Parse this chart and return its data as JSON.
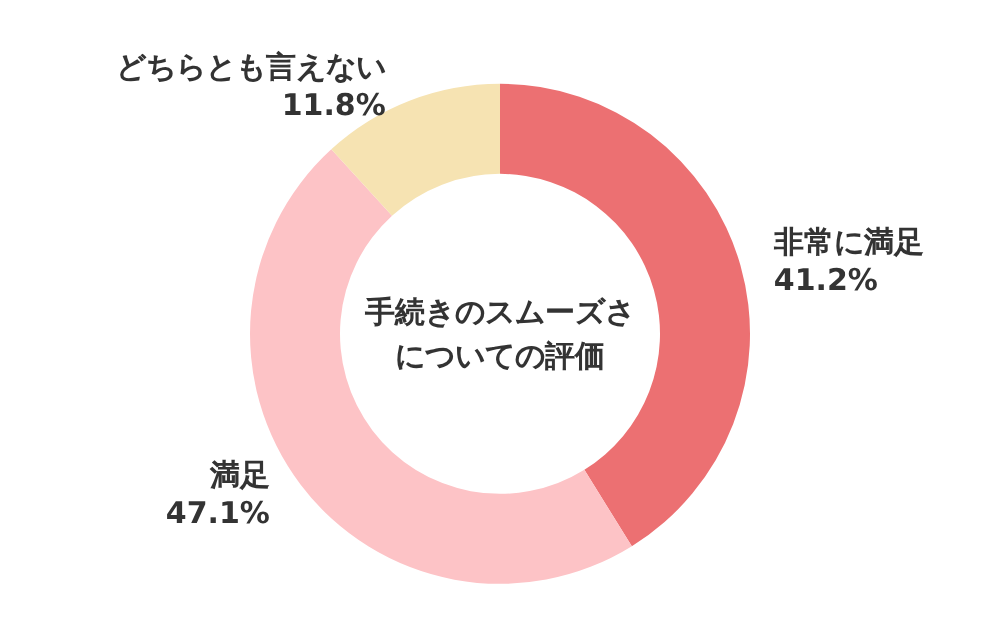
{
  "chart_data": {
    "type": "donut",
    "title": "手続きのスムーズさについての評価",
    "categories": [
      "非常に満足",
      "満足",
      "どちらとも言えない"
    ],
    "values": [
      41.2,
      47.1,
      11.8
    ],
    "value_labels": [
      "41.2%",
      "47.1%",
      "11.8%"
    ],
    "colors": [
      "#ec7072",
      "#fdc3c6",
      "#f6e3b2"
    ],
    "legend": false
  }
}
